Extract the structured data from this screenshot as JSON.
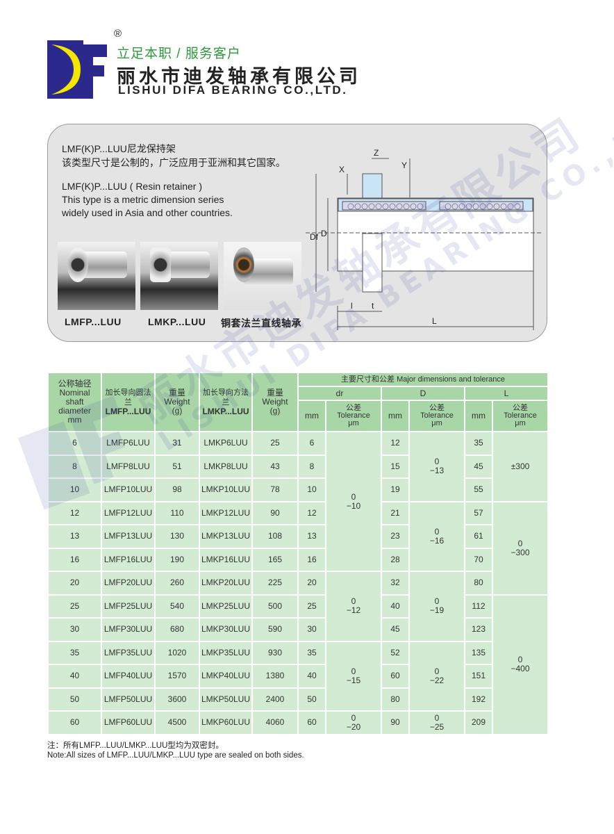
{
  "header": {
    "registered_mark": "®",
    "slogan": "立足本职 / 服务客户",
    "company_name_cn": "丽水市迪发轴承有限公司",
    "company_name_en": "LISHUI DIFA BEARING CO.,LTD.",
    "logo_text": "DF",
    "colors": {
      "logo_blue": "#2b2a8c",
      "logo_yellow": "#f5e600",
      "slogan_green": "#2f9a3c"
    }
  },
  "info": {
    "line1": "LMF(K)P...LUU尼龙保持架",
    "line2": "该类型尺寸是公制的，广泛应用于亚洲和其它国家。",
    "line3": "LMF(K)P...LUU ( Resin retainer )",
    "line4": "This type is a metric dimension series",
    "line5": "widely used in Asia and other countries.",
    "captions": [
      "LMFP...LUU",
      "LMKP...LUU",
      "铜套法兰直线轴承"
    ],
    "diagram_labels": {
      "z": "Z",
      "x": "X",
      "y": "Y",
      "df": "Df",
      "d": "D",
      "l_small": "l",
      "t": "t",
      "l": "L"
    }
  },
  "table": {
    "h_nominal": [
      "公称轴径",
      "Nominal",
      "shaft",
      "diameter",
      "mm"
    ],
    "h_lmfp": [
      "加长导向圆法兰",
      "LMFP...LUU"
    ],
    "h_weight": [
      "重量",
      "Weight",
      "(g)"
    ],
    "h_lmkp": [
      "加长导向方法兰",
      "LMKP...LUU"
    ],
    "h_major": "主要尺寸和公差 Major dimensions and tolerance",
    "h_groups": [
      "dr",
      "D",
      "L"
    ],
    "h_mm": "mm",
    "h_tol": [
      "公差",
      "Tolerance",
      "μm"
    ],
    "rows": [
      {
        "d": "6",
        "lmfp": "LMFP6LUU",
        "w1": "31",
        "lmkp": "LMKP6LUU",
        "w2": "25",
        "dr": "6",
        "D": "12",
        "L": "35"
      },
      {
        "d": "8",
        "lmfp": "LMFP8LUU",
        "w1": "51",
        "lmkp": "LMKP8LUU",
        "w2": "43",
        "dr": "8",
        "D": "15",
        "L": "45"
      },
      {
        "d": "10",
        "lmfp": "LMFP10LUU",
        "w1": "98",
        "lmkp": "LMKP10LUU",
        "w2": "78",
        "dr": "10",
        "D": "19",
        "L": "55"
      },
      {
        "d": "12",
        "lmfp": "LMFP12LUU",
        "w1": "110",
        "lmkp": "LMKP12LUU",
        "w2": "90",
        "dr": "12",
        "D": "21",
        "L": "57"
      },
      {
        "d": "13",
        "lmfp": "LMFP13LUU",
        "w1": "130",
        "lmkp": "LMKP13LUU",
        "w2": "108",
        "dr": "13",
        "D": "23",
        "L": "61"
      },
      {
        "d": "16",
        "lmfp": "LMFP16LUU",
        "w1": "190",
        "lmkp": "LMKP16LUU",
        "w2": "165",
        "dr": "16",
        "D": "28",
        "L": "70"
      },
      {
        "d": "20",
        "lmfp": "LMFP20LUU",
        "w1": "260",
        "lmkp": "LMKP20LUU",
        "w2": "225",
        "dr": "20",
        "D": "32",
        "L": "80"
      },
      {
        "d": "25",
        "lmfp": "LMFP25LUU",
        "w1": "540",
        "lmkp": "LMKP25LUU",
        "w2": "500",
        "dr": "25",
        "D": "40",
        "L": "112"
      },
      {
        "d": "30",
        "lmfp": "LMFP30LUU",
        "w1": "680",
        "lmkp": "LMKP30LUU",
        "w2": "590",
        "dr": "30",
        "D": "45",
        "L": "123"
      },
      {
        "d": "35",
        "lmfp": "LMFP35LUU",
        "w1": "1020",
        "lmkp": "LMKP35LUU",
        "w2": "930",
        "dr": "35",
        "D": "52",
        "L": "135"
      },
      {
        "d": "40",
        "lmfp": "LMFP40LUU",
        "w1": "1570",
        "lmkp": "LMKP40LUU",
        "w2": "1380",
        "dr": "40",
        "D": "60",
        "L": "151"
      },
      {
        "d": "50",
        "lmfp": "LMFP50LUU",
        "w1": "3600",
        "lmkp": "LMKP50LUU",
        "w2": "2400",
        "dr": "50",
        "D": "80",
        "L": "192"
      },
      {
        "d": "60",
        "lmfp": "LMFP60LUU",
        "w1": "4500",
        "lmkp": "LMKP60LUU",
        "w2": "4060",
        "dr": "60",
        "D": "90",
        "L": "209"
      }
    ],
    "dr_tol": [
      {
        "start": 0,
        "span": 6,
        "top": "0",
        "bottom": "−10"
      },
      {
        "start": 6,
        "span": 3,
        "top": "0",
        "bottom": "−12"
      },
      {
        "start": 9,
        "span": 3,
        "top": "0",
        "bottom": "−15"
      },
      {
        "start": 12,
        "span": 1,
        "top": "0",
        "bottom": "−20"
      }
    ],
    "D_tol": [
      {
        "start": 0,
        "span": 3,
        "top": "0",
        "bottom": "−13"
      },
      {
        "start": 3,
        "span": 3,
        "top": "0",
        "bottom": "−16"
      },
      {
        "start": 6,
        "span": 3,
        "top": "0",
        "bottom": "−19"
      },
      {
        "start": 9,
        "span": 3,
        "top": "0",
        "bottom": "−22"
      },
      {
        "start": 12,
        "span": 1,
        "top": "0",
        "bottom": "−25"
      }
    ],
    "L_tol": [
      {
        "start": 0,
        "span": 3,
        "top": "±300",
        "bottom": ""
      },
      {
        "start": 3,
        "span": 4,
        "top": "0",
        "bottom": "−300"
      },
      {
        "start": 7,
        "span": 6,
        "top": "0",
        "bottom": "−400"
      }
    ]
  },
  "note": {
    "cn": "注：所有LMFP...LUU/LMKP...LUU型均为双密封。",
    "en": "Note:All sizes of LMFP...LUU/LMKP...LUU type are sealed on both sides."
  },
  "watermark": {
    "cn": "丽水市迪发轴承有限公司",
    "en": "LISHUI DIFA BEARING CO.,LTD."
  }
}
